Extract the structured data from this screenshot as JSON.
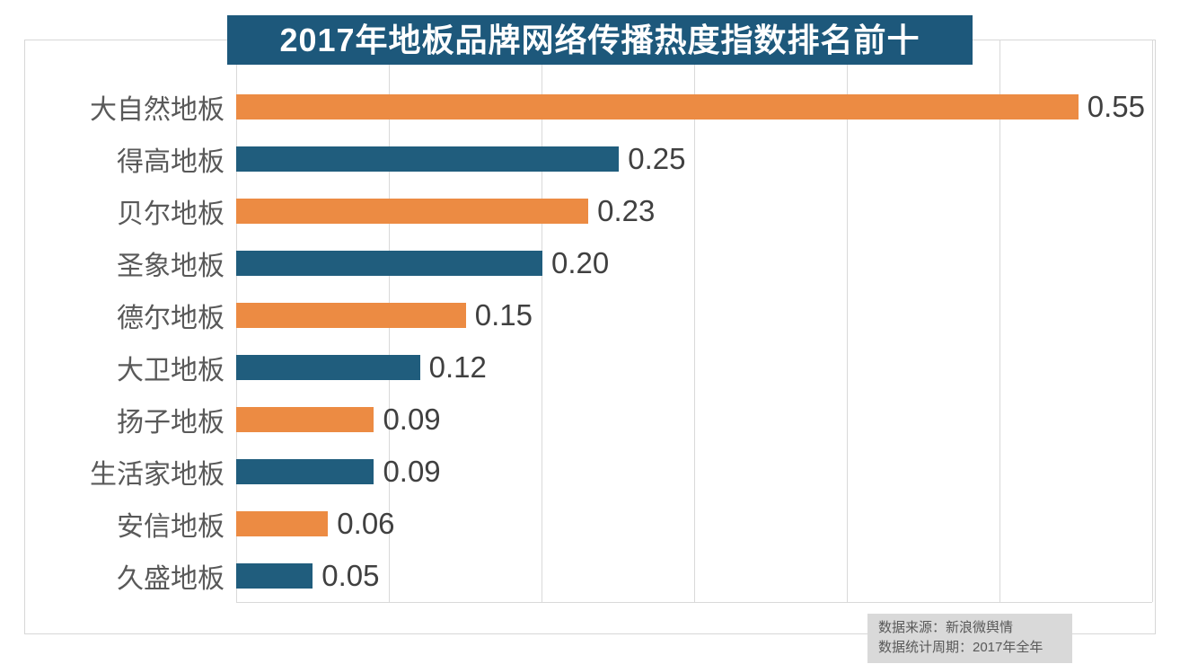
{
  "title": "2017年地板品牌网络传播热度指数排名前十",
  "chart_data": {
    "type": "bar",
    "orientation": "horizontal",
    "title": "2017年地板品牌网络传播热度指数排名前十",
    "categories": [
      "大自然地板",
      "得高地板",
      "贝尔地板",
      "圣象地板",
      "德尔地板",
      "大卫地板",
      "扬子地板",
      "生活家地板",
      "安信地板",
      "久盛地板"
    ],
    "values": [
      0.55,
      0.25,
      0.23,
      0.2,
      0.15,
      0.12,
      0.09,
      0.09,
      0.06,
      0.05
    ],
    "value_labels": [
      "0.55",
      "0.25",
      "0.23",
      "0.20",
      "0.15",
      "0.12",
      "0.09",
      "0.09",
      "0.06",
      "0.05"
    ],
    "xlim": [
      0,
      0.6
    ],
    "grid_step": 0.1,
    "grid": "vertical-only",
    "legend_position": "none",
    "data_labels": "outside-end"
  },
  "footer": {
    "line1": "数据来源：新浪微舆情",
    "line2": "数据统计周期：2017年全年"
  },
  "colors": {
    "title_bg": "#1d587b",
    "title_text": "#ffffff",
    "bar_orange": "#ec8b43",
    "bar_teal": "#205d7d",
    "grid": "#d9d9d9",
    "frame_border": "#d7d7d7",
    "category_text": "#595959",
    "value_text": "#404040",
    "footer_bg": "#d9d9d9",
    "footer_text": "#595959"
  }
}
